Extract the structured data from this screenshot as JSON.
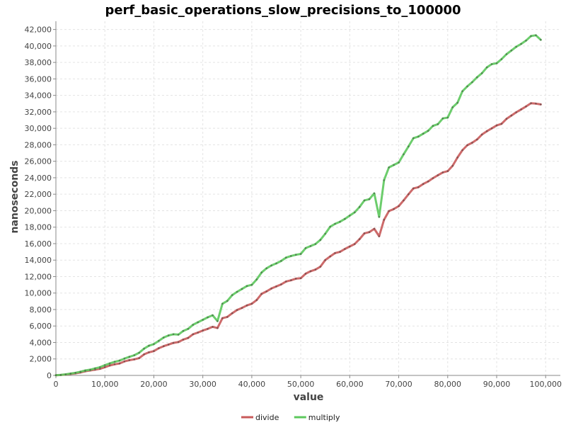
{
  "chart_data": {
    "type": "line",
    "title": "perf_basic_operations_slow_precisions_to_100000",
    "xlabel": "value",
    "ylabel": "nanoseconds",
    "xlim": [
      0,
      103000
    ],
    "ylim": [
      0,
      43000
    ],
    "xticks": [
      0,
      10000,
      20000,
      30000,
      40000,
      50000,
      60000,
      70000,
      80000,
      90000,
      100000
    ],
    "yticks": [
      0,
      2000,
      4000,
      6000,
      8000,
      10000,
      12000,
      14000,
      16000,
      18000,
      20000,
      22000,
      24000,
      26000,
      28000,
      30000,
      32000,
      34000,
      36000,
      38000,
      40000,
      42000
    ],
    "grid": true,
    "legend_position": "bottom",
    "series": [
      {
        "name": "divide",
        "color": "#c85a5a",
        "points": [
          [
            0,
            30
          ],
          [
            1000,
            50
          ],
          [
            2000,
            100
          ],
          [
            3000,
            180
          ],
          [
            4000,
            250
          ],
          [
            5000,
            350
          ],
          [
            6000,
            500
          ],
          [
            7000,
            600
          ],
          [
            8000,
            700
          ],
          [
            9000,
            800
          ],
          [
            10000,
            1000
          ],
          [
            11000,
            1200
          ],
          [
            12000,
            1350
          ],
          [
            13000,
            1450
          ],
          [
            14000,
            1700
          ],
          [
            15000,
            1850
          ],
          [
            16000,
            1950
          ],
          [
            17000,
            2100
          ],
          [
            18000,
            2550
          ],
          [
            19000,
            2800
          ],
          [
            20000,
            2950
          ],
          [
            21000,
            3300
          ],
          [
            22000,
            3550
          ],
          [
            23000,
            3750
          ],
          [
            24000,
            3950
          ],
          [
            25000,
            4050
          ],
          [
            26000,
            4350
          ],
          [
            27000,
            4550
          ],
          [
            28000,
            5000
          ],
          [
            29000,
            5200
          ],
          [
            30000,
            5450
          ],
          [
            31000,
            5650
          ],
          [
            32000,
            5900
          ],
          [
            33000,
            5750
          ],
          [
            34000,
            6950
          ],
          [
            35000,
            7100
          ],
          [
            36000,
            7550
          ],
          [
            37000,
            7950
          ],
          [
            38000,
            8200
          ],
          [
            39000,
            8500
          ],
          [
            40000,
            8700
          ],
          [
            41000,
            9150
          ],
          [
            42000,
            9900
          ],
          [
            43000,
            10200
          ],
          [
            44000,
            10550
          ],
          [
            45000,
            10800
          ],
          [
            46000,
            11050
          ],
          [
            47000,
            11400
          ],
          [
            48000,
            11550
          ],
          [
            49000,
            11750
          ],
          [
            50000,
            11800
          ],
          [
            51000,
            12350
          ],
          [
            52000,
            12650
          ],
          [
            53000,
            12850
          ],
          [
            54000,
            13200
          ],
          [
            55000,
            14000
          ],
          [
            56000,
            14450
          ],
          [
            57000,
            14850
          ],
          [
            58000,
            15000
          ],
          [
            59000,
            15350
          ],
          [
            60000,
            15650
          ],
          [
            61000,
            15950
          ],
          [
            62000,
            16550
          ],
          [
            63000,
            17250
          ],
          [
            64000,
            17400
          ],
          [
            65000,
            17800
          ],
          [
            66000,
            16900
          ],
          [
            67000,
            18900
          ],
          [
            68000,
            19950
          ],
          [
            69000,
            20200
          ],
          [
            70000,
            20550
          ],
          [
            71000,
            21250
          ],
          [
            72000,
            22000
          ],
          [
            73000,
            22700
          ],
          [
            74000,
            22850
          ],
          [
            75000,
            23250
          ],
          [
            76000,
            23550
          ],
          [
            77000,
            23950
          ],
          [
            78000,
            24300
          ],
          [
            79000,
            24650
          ],
          [
            80000,
            24800
          ],
          [
            81000,
            25450
          ],
          [
            82000,
            26450
          ],
          [
            83000,
            27350
          ],
          [
            84000,
            27950
          ],
          [
            85000,
            28250
          ],
          [
            86000,
            28650
          ],
          [
            87000,
            29250
          ],
          [
            88000,
            29650
          ],
          [
            89000,
            30000
          ],
          [
            90000,
            30350
          ],
          [
            91000,
            30550
          ],
          [
            92000,
            31150
          ],
          [
            93000,
            31550
          ],
          [
            94000,
            31950
          ],
          [
            95000,
            32300
          ],
          [
            96000,
            32650
          ],
          [
            97000,
            33050
          ],
          [
            98000,
            33000
          ],
          [
            99000,
            32900
          ]
        ]
      },
      {
        "name": "multiply",
        "color": "#5cc85c",
        "points": [
          [
            0,
            30
          ],
          [
            1000,
            60
          ],
          [
            2000,
            130
          ],
          [
            3000,
            220
          ],
          [
            4000,
            320
          ],
          [
            5000,
            450
          ],
          [
            6000,
            600
          ],
          [
            7000,
            700
          ],
          [
            8000,
            850
          ],
          [
            9000,
            1000
          ],
          [
            10000,
            1250
          ],
          [
            11000,
            1450
          ],
          [
            12000,
            1650
          ],
          [
            13000,
            1800
          ],
          [
            14000,
            2050
          ],
          [
            15000,
            2250
          ],
          [
            16000,
            2450
          ],
          [
            17000,
            2750
          ],
          [
            18000,
            3250
          ],
          [
            19000,
            3600
          ],
          [
            20000,
            3800
          ],
          [
            21000,
            4200
          ],
          [
            22000,
            4600
          ],
          [
            23000,
            4850
          ],
          [
            24000,
            5000
          ],
          [
            25000,
            4950
          ],
          [
            26000,
            5400
          ],
          [
            27000,
            5650
          ],
          [
            28000,
            6150
          ],
          [
            29000,
            6450
          ],
          [
            30000,
            6750
          ],
          [
            31000,
            7050
          ],
          [
            32000,
            7300
          ],
          [
            33000,
            6600
          ],
          [
            34000,
            8700
          ],
          [
            35000,
            9050
          ],
          [
            36000,
            9750
          ],
          [
            37000,
            10150
          ],
          [
            38000,
            10500
          ],
          [
            39000,
            10850
          ],
          [
            40000,
            11000
          ],
          [
            41000,
            11650
          ],
          [
            42000,
            12500
          ],
          [
            43000,
            13000
          ],
          [
            44000,
            13350
          ],
          [
            45000,
            13600
          ],
          [
            46000,
            13900
          ],
          [
            47000,
            14300
          ],
          [
            48000,
            14500
          ],
          [
            49000,
            14650
          ],
          [
            50000,
            14750
          ],
          [
            51000,
            15450
          ],
          [
            52000,
            15700
          ],
          [
            53000,
            15950
          ],
          [
            54000,
            16450
          ],
          [
            55000,
            17200
          ],
          [
            56000,
            18050
          ],
          [
            57000,
            18400
          ],
          [
            58000,
            18650
          ],
          [
            59000,
            19000
          ],
          [
            60000,
            19400
          ],
          [
            61000,
            19800
          ],
          [
            62000,
            20450
          ],
          [
            63000,
            21250
          ],
          [
            64000,
            21400
          ],
          [
            65000,
            22100
          ],
          [
            66000,
            19250
          ],
          [
            67000,
            23700
          ],
          [
            68000,
            25250
          ],
          [
            69000,
            25550
          ],
          [
            70000,
            25850
          ],
          [
            71000,
            26850
          ],
          [
            72000,
            27800
          ],
          [
            73000,
            28800
          ],
          [
            74000,
            29000
          ],
          [
            75000,
            29350
          ],
          [
            76000,
            29700
          ],
          [
            77000,
            30300
          ],
          [
            78000,
            30500
          ],
          [
            79000,
            31200
          ],
          [
            80000,
            31300
          ],
          [
            81000,
            32550
          ],
          [
            82000,
            33100
          ],
          [
            83000,
            34500
          ],
          [
            84000,
            35100
          ],
          [
            85000,
            35600
          ],
          [
            86000,
            36200
          ],
          [
            87000,
            36700
          ],
          [
            88000,
            37400
          ],
          [
            89000,
            37800
          ],
          [
            90000,
            37900
          ],
          [
            91000,
            38400
          ],
          [
            92000,
            39000
          ],
          [
            93000,
            39450
          ],
          [
            94000,
            39900
          ],
          [
            95000,
            40250
          ],
          [
            96000,
            40650
          ],
          [
            97000,
            41200
          ],
          [
            98000,
            41300
          ],
          [
            99000,
            40750
          ]
        ]
      }
    ]
  }
}
